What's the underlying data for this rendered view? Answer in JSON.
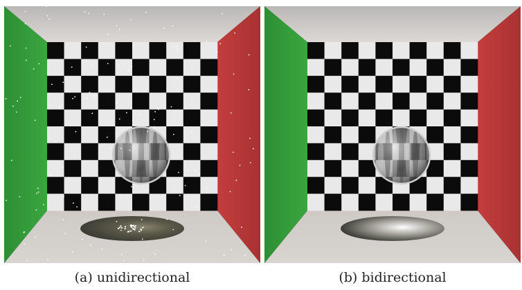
{
  "figures": [
    {
      "caption": "(a) unidirectional",
      "noise": true
    },
    {
      "caption": "(b) bidirectional",
      "noise": false
    }
  ],
  "colors": {
    "left_wall": "#3aa63f",
    "right_wall": "#c43d3d",
    "floor": "#d8d4d0",
    "ceiling": "#c9c6c3",
    "checker_dark": "#0b0b0b",
    "checker_light": "#e9e9e9",
    "frame": "#111111"
  }
}
